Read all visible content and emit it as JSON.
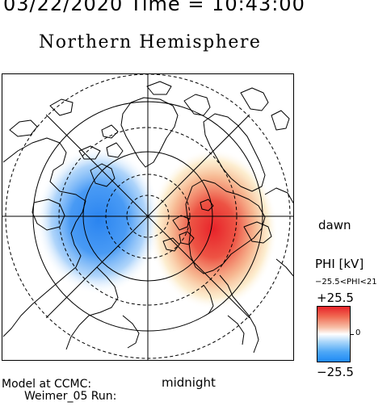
{
  "header": {
    "datetime_text": "03/22/2020 Time = 10:43:00"
  },
  "title": "Northern Hemisphere",
  "map": {
    "projection": "polar stereographic, north pole centered",
    "grid": "dashed latitude circles, radial meridian lines",
    "colors": {
      "positive": "#e8232a",
      "negative": "#2a84f0",
      "neutral": "#ffffff"
    },
    "potential_cells": [
      {
        "sign": "negative",
        "sector": "dusk"
      },
      {
        "sign": "positive",
        "sector": "dawn"
      }
    ]
  },
  "labels": {
    "dawn": "dawn",
    "midnight": "midnight"
  },
  "model": {
    "line1": "Model at CCMC:",
    "line2": "Weimer_05 Run:"
  },
  "colorbar": {
    "title": "PHI [kV]",
    "range_text": "−25.5<PHI<21",
    "max_label": "+25.5",
    "zero_label": "0",
    "min_label": "−25.5",
    "min": -25.5,
    "max": 25.5,
    "colors": {
      "top": "#e8232a",
      "middle": "#ffffff",
      "bottom": "#1f8af5"
    }
  }
}
